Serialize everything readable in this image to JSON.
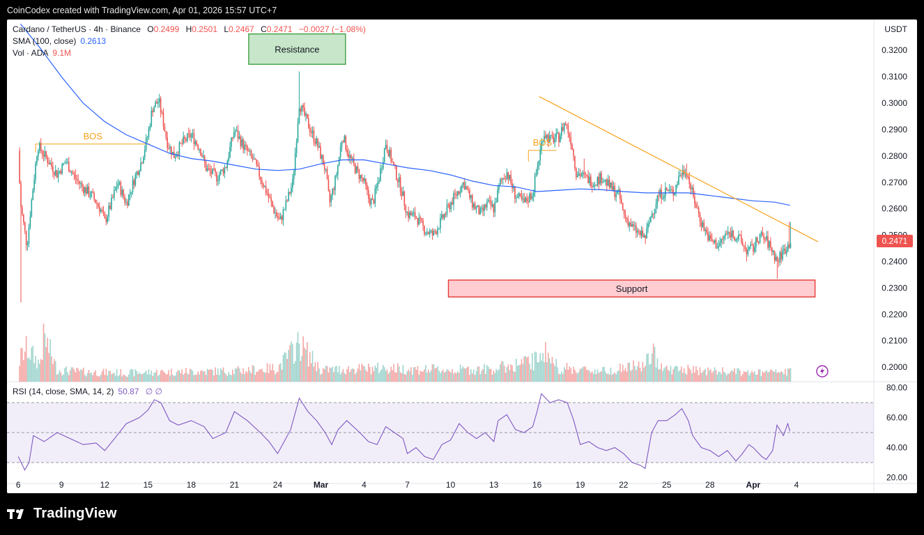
{
  "header": {
    "created_text": "CoinCodex created with TradingView.com, Apr 01, 2026 15:57 UTC+7"
  },
  "legend": {
    "pair": "Cardano / TetherUS · 4h · Binance",
    "o_label": "O",
    "o_value": "0.2499",
    "h_label": "H",
    "h_value": "0.2501",
    "l_label": "L",
    "l_value": "0.2467",
    "c_label": "C",
    "c_value": "0.2471",
    "change": "−0.0027 (−1.08%)",
    "sma_label": "SMA (100, close)",
    "sma_value": "0.2613",
    "vol_label": "Vol · ADA",
    "vol_value": "9.1M",
    "rsi_label": "RSI (14, close, SMA, 14, 2)",
    "rsi_value": "50.87",
    "rsi_extra": "∅ ∅"
  },
  "currency": "USDT",
  "price_badge": "0.2471",
  "footer": {
    "brand": "TradingView",
    "logo_icon": "tradingview-logo-icon"
  },
  "colors": {
    "up": "#26a69a",
    "down": "#ef5350",
    "sma": "#2962ff",
    "trend": "#f7a21b",
    "rsi": "#7e57c2",
    "resistance_fill": "#c8e6c9",
    "resistance_stroke": "#43a047",
    "support_fill": "#ffcdd2",
    "support_stroke": "#e53935"
  },
  "chart_data": {
    "type": "candlestick",
    "y_axis": {
      "ticks": [
        "0.3200",
        "0.3100",
        "0.3000",
        "0.2900",
        "0.2800",
        "0.2700",
        "0.2600",
        "0.2500",
        "0.2400",
        "0.2300",
        "0.2200",
        "0.2100",
        "0.2000"
      ],
      "ylim": [
        0.1945,
        0.3306
      ]
    },
    "x_axis": {
      "ticks": [
        "6",
        "9",
        "12",
        "15",
        "18",
        "21",
        "24",
        "Mar",
        "4",
        "7",
        "10",
        "13",
        "16",
        "19",
        "22",
        "25",
        "28",
        "Apr",
        "4"
      ],
      "tick_index": [
        0,
        1,
        2,
        3,
        4,
        5,
        6,
        7,
        8,
        9,
        10,
        11,
        12,
        13,
        14,
        15,
        16,
        17,
        18
      ],
      "xlim": [
        -0.1,
        19.5
      ]
    },
    "price_path": [
      [
        0.0,
        0.282
      ],
      [
        0.05,
        0.262
      ],
      [
        0.2,
        0.246
      ],
      [
        0.3,
        0.262
      ],
      [
        0.45,
        0.284
      ],
      [
        0.7,
        0.278
      ],
      [
        0.9,
        0.273
      ],
      [
        1.1,
        0.278
      ],
      [
        1.3,
        0.272
      ],
      [
        1.5,
        0.268
      ],
      [
        1.7,
        0.265
      ],
      [
        1.9,
        0.26
      ],
      [
        2.0,
        0.255
      ],
      [
        2.15,
        0.262
      ],
      [
        2.3,
        0.27
      ],
      [
        2.5,
        0.262
      ],
      [
        2.7,
        0.272
      ],
      [
        2.85,
        0.278
      ],
      [
        3.0,
        0.288
      ],
      [
        3.1,
        0.298
      ],
      [
        3.25,
        0.301
      ],
      [
        3.45,
        0.285
      ],
      [
        3.6,
        0.28
      ],
      [
        3.8,
        0.285
      ],
      [
        4.0,
        0.288
      ],
      [
        4.2,
        0.283
      ],
      [
        4.35,
        0.275
      ],
      [
        4.6,
        0.272
      ],
      [
        4.8,
        0.276
      ],
      [
        5.0,
        0.29
      ],
      [
        5.2,
        0.284
      ],
      [
        5.45,
        0.278
      ],
      [
        5.7,
        0.268
      ],
      [
        5.9,
        0.26
      ],
      [
        6.05,
        0.255
      ],
      [
        6.2,
        0.262
      ],
      [
        6.35,
        0.27
      ],
      [
        6.5,
        0.3
      ],
      [
        6.7,
        0.292
      ],
      [
        6.9,
        0.285
      ],
      [
        7.1,
        0.275
      ],
      [
        7.2,
        0.262
      ],
      [
        7.35,
        0.272
      ],
      [
        7.5,
        0.288
      ],
      [
        7.65,
        0.28
      ],
      [
        7.8,
        0.275
      ],
      [
        8.0,
        0.27
      ],
      [
        8.1,
        0.264
      ],
      [
        8.2,
        0.262
      ],
      [
        8.35,
        0.272
      ],
      [
        8.5,
        0.285
      ],
      [
        8.7,
        0.275
      ],
      [
        8.85,
        0.268
      ],
      [
        9.0,
        0.258
      ],
      [
        9.2,
        0.257
      ],
      [
        9.4,
        0.252
      ],
      [
        9.6,
        0.25
      ],
      [
        9.8,
        0.256
      ],
      [
        10.0,
        0.262
      ],
      [
        10.15,
        0.266
      ],
      [
        10.3,
        0.27
      ],
      [
        10.5,
        0.262
      ],
      [
        10.7,
        0.258
      ],
      [
        10.85,
        0.262
      ],
      [
        11.0,
        0.26
      ],
      [
        11.15,
        0.27
      ],
      [
        11.3,
        0.274
      ],
      [
        11.5,
        0.265
      ],
      [
        11.7,
        0.262
      ],
      [
        11.9,
        0.266
      ],
      [
        12.0,
        0.275
      ],
      [
        12.15,
        0.289
      ],
      [
        12.3,
        0.286
      ],
      [
        12.5,
        0.287
      ],
      [
        12.65,
        0.293
      ],
      [
        12.8,
        0.285
      ],
      [
        12.9,
        0.274
      ],
      [
        13.1,
        0.272
      ],
      [
        13.3,
        0.27
      ],
      [
        13.5,
        0.272
      ],
      [
        13.7,
        0.268
      ],
      [
        13.9,
        0.265
      ],
      [
        14.0,
        0.258
      ],
      [
        14.2,
        0.253
      ],
      [
        14.4,
        0.25
      ],
      [
        14.5,
        0.249
      ],
      [
        14.65,
        0.258
      ],
      [
        14.8,
        0.265
      ],
      [
        15.0,
        0.267
      ],
      [
        15.15,
        0.266
      ],
      [
        15.3,
        0.273
      ],
      [
        15.45,
        0.275
      ],
      [
        15.6,
        0.265
      ],
      [
        15.8,
        0.255
      ],
      [
        16.0,
        0.248
      ],
      [
        16.2,
        0.246
      ],
      [
        16.35,
        0.25
      ],
      [
        16.5,
        0.251
      ],
      [
        16.7,
        0.248
      ],
      [
        16.85,
        0.244
      ],
      [
        17.0,
        0.245
      ],
      [
        17.15,
        0.25
      ],
      [
        17.3,
        0.248
      ],
      [
        17.45,
        0.244
      ],
      [
        17.55,
        0.24
      ],
      [
        17.7,
        0.244
      ],
      [
        17.85,
        0.2471
      ]
    ],
    "wick_extremes": [
      {
        "x": 0.05,
        "low": 0.2245
      },
      {
        "x": 6.5,
        "high": 0.312
      },
      {
        "x": 13.1,
        "high": 0.279
      },
      {
        "x": 15.45,
        "high": 0.277
      },
      {
        "x": 16.85,
        "low": 0.24
      },
      {
        "x": 17.55,
        "low": 0.2335
      },
      {
        "x": 17.85,
        "high": 0.255
      }
    ],
    "sma_100": [
      [
        0.05,
        0.33
      ],
      [
        0.5,
        0.321
      ],
      [
        1.0,
        0.31
      ],
      [
        1.5,
        0.3
      ],
      [
        2.0,
        0.293
      ],
      [
        2.5,
        0.288
      ],
      [
        3.0,
        0.2845
      ],
      [
        3.5,
        0.281
      ],
      [
        4.0,
        0.279
      ],
      [
        4.5,
        0.278
      ],
      [
        5.0,
        0.2765
      ],
      [
        5.5,
        0.275
      ],
      [
        6.0,
        0.2745
      ],
      [
        6.5,
        0.275
      ],
      [
        7.0,
        0.277
      ],
      [
        7.5,
        0.2785
      ],
      [
        8.0,
        0.2785
      ],
      [
        8.5,
        0.277
      ],
      [
        9.0,
        0.2755
      ],
      [
        9.5,
        0.2745
      ],
      [
        10.0,
        0.2728
      ],
      [
        10.5,
        0.2705
      ],
      [
        11.0,
        0.2688
      ],
      [
        11.5,
        0.2683
      ],
      [
        12.0,
        0.2665
      ],
      [
        12.5,
        0.267
      ],
      [
        13.0,
        0.2675
      ],
      [
        13.5,
        0.2672
      ],
      [
        14.0,
        0.2665
      ],
      [
        14.5,
        0.266
      ],
      [
        15.0,
        0.266
      ],
      [
        15.5,
        0.266
      ],
      [
        16.0,
        0.265
      ],
      [
        16.5,
        0.264
      ],
      [
        17.0,
        0.263
      ],
      [
        17.5,
        0.2625
      ],
      [
        17.85,
        0.2613
      ]
    ],
    "volume_path": [
      [
        0.0,
        1.5
      ],
      [
        0.05,
        2.5
      ],
      [
        0.2,
        3.4
      ],
      [
        0.5,
        1.8
      ],
      [
        0.6,
        4.6
      ],
      [
        0.9,
        1.2
      ],
      [
        1.5,
        1.0
      ],
      [
        2.5,
        0.9
      ],
      [
        3.5,
        1.0
      ],
      [
        5.0,
        1.1
      ],
      [
        6.0,
        1.4
      ],
      [
        6.5,
        3.9
      ],
      [
        7.0,
        1.2
      ],
      [
        8.5,
        1.4
      ],
      [
        9.0,
        1.3
      ],
      [
        10.0,
        1.2
      ],
      [
        11.0,
        1.3
      ],
      [
        12.0,
        2.2
      ],
      [
        12.1,
        3.5
      ],
      [
        12.5,
        1.4
      ],
      [
        13.5,
        1.1
      ],
      [
        14.5,
        1.7
      ],
      [
        14.65,
        2.9
      ],
      [
        15.0,
        1.3
      ],
      [
        16.0,
        1.1
      ],
      [
        17.0,
        0.9
      ],
      [
        17.85,
        1.0
      ]
    ],
    "rsi": [
      [
        0.0,
        34
      ],
      [
        0.15,
        25
      ],
      [
        0.25,
        30
      ],
      [
        0.35,
        48
      ],
      [
        0.6,
        44
      ],
      [
        0.9,
        50
      ],
      [
        1.2,
        46
      ],
      [
        1.5,
        42
      ],
      [
        1.8,
        43
      ],
      [
        2.0,
        38
      ],
      [
        2.2,
        45
      ],
      [
        2.5,
        56
      ],
      [
        2.8,
        60
      ],
      [
        3.0,
        65
      ],
      [
        3.15,
        72
      ],
      [
        3.3,
        70
      ],
      [
        3.5,
        58
      ],
      [
        3.7,
        55
      ],
      [
        4.0,
        58
      ],
      [
        4.3,
        54
      ],
      [
        4.5,
        46
      ],
      [
        4.8,
        50
      ],
      [
        5.0,
        64
      ],
      [
        5.3,
        58
      ],
      [
        5.6,
        50
      ],
      [
        5.8,
        44
      ],
      [
        6.0,
        36
      ],
      [
        6.15,
        44
      ],
      [
        6.3,
        52
      ],
      [
        6.5,
        73
      ],
      [
        6.7,
        64
      ],
      [
        6.9,
        58
      ],
      [
        7.1,
        50
      ],
      [
        7.25,
        42
      ],
      [
        7.4,
        52
      ],
      [
        7.6,
        58
      ],
      [
        7.9,
        50
      ],
      [
        8.1,
        44
      ],
      [
        8.3,
        42
      ],
      [
        8.5,
        54
      ],
      [
        8.7,
        50
      ],
      [
        8.9,
        46
      ],
      [
        9.0,
        36
      ],
      [
        9.2,
        40
      ],
      [
        9.4,
        34
      ],
      [
        9.6,
        32
      ],
      [
        9.8,
        42
      ],
      [
        10.0,
        45
      ],
      [
        10.2,
        56
      ],
      [
        10.4,
        50
      ],
      [
        10.6,
        46
      ],
      [
        10.8,
        50
      ],
      [
        11.0,
        44
      ],
      [
        11.1,
        58
      ],
      [
        11.3,
        62
      ],
      [
        11.5,
        52
      ],
      [
        11.7,
        50
      ],
      [
        11.9,
        54
      ],
      [
        12.0,
        64
      ],
      [
        12.1,
        76
      ],
      [
        12.3,
        70
      ],
      [
        12.5,
        72
      ],
      [
        12.7,
        70
      ],
      [
        12.85,
        58
      ],
      [
        13.0,
        42
      ],
      [
        13.2,
        44
      ],
      [
        13.4,
        40
      ],
      [
        13.6,
        38
      ],
      [
        13.8,
        40
      ],
      [
        14.0,
        36
      ],
      [
        14.2,
        30
      ],
      [
        14.4,
        28
      ],
      [
        14.5,
        26
      ],
      [
        14.65,
        50
      ],
      [
        14.8,
        58
      ],
      [
        15.0,
        58
      ],
      [
        15.2,
        62
      ],
      [
        15.35,
        66
      ],
      [
        15.5,
        58
      ],
      [
        15.6,
        48
      ],
      [
        15.8,
        40
      ],
      [
        16.0,
        38
      ],
      [
        16.2,
        34
      ],
      [
        16.4,
        38
      ],
      [
        16.6,
        31
      ],
      [
        16.75,
        36
      ],
      [
        16.9,
        42
      ],
      [
        17.0,
        40
      ],
      [
        17.2,
        34
      ],
      [
        17.3,
        32
      ],
      [
        17.45,
        38
      ],
      [
        17.55,
        55
      ],
      [
        17.7,
        48
      ],
      [
        17.8,
        56
      ],
      [
        17.85,
        50.87
      ]
    ],
    "rsi_axis": {
      "ticks": [
        "80.00",
        "60.00",
        "40.00",
        "20.00"
      ],
      "ylim": [
        16,
        84
      ],
      "band": [
        30,
        70
      ],
      "mid": 50
    },
    "annotations": {
      "resistance": {
        "label": "Resistance",
        "x_range": [
          5.33,
          7.57
        ],
        "price_range": [
          0.3147,
          0.3262
        ]
      },
      "support": {
        "label": "Support",
        "x_range": [
          9.95,
          18.43
        ],
        "price_range": [
          0.2266,
          0.233
        ]
      },
      "bos": [
        {
          "label": "BOS",
          "x_range": [
            0.4,
            3.05
          ],
          "price": 0.2845
        },
        {
          "label": "BOS",
          "x_range": [
            11.8,
            12.45
          ],
          "price": 0.2821
        }
      ],
      "trendline": [
        [
          12.05,
          0.3025
        ],
        [
          18.5,
          0.2475
        ]
      ]
    }
  }
}
